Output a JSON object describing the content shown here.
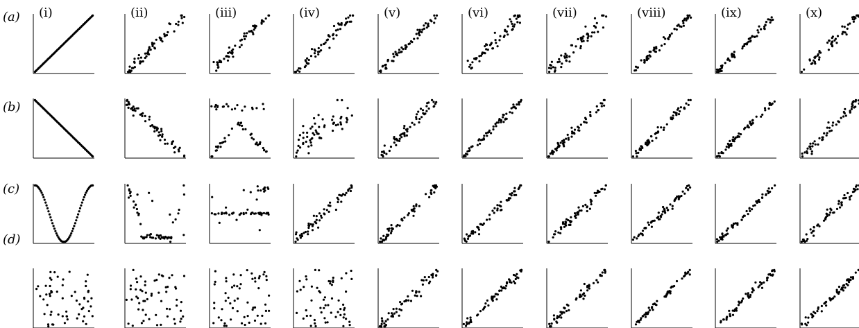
{
  "figure": {
    "row_labels": [
      "(a)",
      "(b)",
      "(c)",
      "(d)"
    ],
    "column_labels": [
      "(i)",
      "(ii)",
      "(iii)",
      "(iv)",
      "(v)",
      "(vi)",
      "(vii)",
      "(viii)",
      "(ix)",
      "(x)"
    ]
  },
  "colors": {
    "axis": "#000000",
    "points": "#000000",
    "background": "#ffffff"
  },
  "chart_data": {
    "type": "scatter",
    "title": "",
    "xlabel": "",
    "ylabel": "",
    "axes_ticks": false,
    "grid": false,
    "legend": "none",
    "xlim": [
      0,
      1
    ],
    "ylim": [
      0,
      1
    ],
    "points_per_panel": 60,
    "panel_description_note": "",
    "rows": [
      {
        "label": "(a)",
        "panels": [
          {
            "column": "(i)",
            "pattern": "identity",
            "noise": 0.0,
            "seed": 11
          },
          {
            "column": "(ii)",
            "pattern": "increasing",
            "noise": 0.05,
            "seed": 12
          },
          {
            "column": "(iii)",
            "pattern": "increasing",
            "noise": 0.05,
            "seed": 13
          },
          {
            "column": "(iv)",
            "pattern": "increasing",
            "noise": 0.05,
            "seed": 14
          },
          {
            "column": "(v)",
            "pattern": "increasing",
            "noise": 0.04,
            "seed": 15
          },
          {
            "column": "(vi)",
            "pattern": "increasing",
            "noise": 0.07,
            "seed": 16
          },
          {
            "column": "(vii)",
            "pattern": "increasing",
            "noise": 0.07,
            "seed": 17
          },
          {
            "column": "(viii)",
            "pattern": "increasing",
            "noise": 0.04,
            "seed": 18
          },
          {
            "column": "(ix)",
            "pattern": "increasing",
            "noise": 0.03,
            "seed": 19
          },
          {
            "column": "(x)",
            "pattern": "increasing",
            "noise": 0.05,
            "seed": 20
          }
        ]
      },
      {
        "label": "(b)",
        "panels": [
          {
            "column": "(i)",
            "pattern": "anti-identity",
            "noise": 0.0,
            "seed": 21
          },
          {
            "column": "(ii)",
            "pattern": "decreasing",
            "noise": 0.05,
            "seed": 22
          },
          {
            "column": "(iii)",
            "pattern": "x-shape",
            "noise": 0.04,
            "seed": 23
          },
          {
            "column": "(iv)",
            "pattern": "weak-increasing",
            "noise": 0.15,
            "seed": 24
          },
          {
            "column": "(v)",
            "pattern": "increasing",
            "noise": 0.06,
            "seed": 25
          },
          {
            "column": "(vi)",
            "pattern": "increasing",
            "noise": 0.04,
            "seed": 26
          },
          {
            "column": "(vii)",
            "pattern": "increasing",
            "noise": 0.04,
            "seed": 27
          },
          {
            "column": "(viii)",
            "pattern": "increasing",
            "noise": 0.04,
            "seed": 28
          },
          {
            "column": "(ix)",
            "pattern": "increasing",
            "noise": 0.03,
            "seed": 29
          },
          {
            "column": "(x)",
            "pattern": "increasing",
            "noise": 0.05,
            "seed": 30
          }
        ]
      },
      {
        "label": "(c)",
        "panels": [
          {
            "column": "(i)",
            "pattern": "cosine",
            "noise": 0.0,
            "seed": 31
          },
          {
            "column": "(ii)",
            "pattern": "u-shape",
            "noise": 0.06,
            "seed": 32
          },
          {
            "column": "(iii)",
            "pattern": "flat-band",
            "noise": 0.06,
            "seed": 33
          },
          {
            "column": "(iv)",
            "pattern": "increasing",
            "noise": 0.06,
            "seed": 34
          },
          {
            "column": "(v)",
            "pattern": "increasing",
            "noise": 0.05,
            "seed": 35
          },
          {
            "column": "(vi)",
            "pattern": "increasing",
            "noise": 0.04,
            "seed": 36
          },
          {
            "column": "(vii)",
            "pattern": "increasing",
            "noise": 0.05,
            "seed": 37
          },
          {
            "column": "(viii)",
            "pattern": "increasing",
            "noise": 0.04,
            "seed": 38
          },
          {
            "column": "(ix)",
            "pattern": "increasing",
            "noise": 0.03,
            "seed": 39
          },
          {
            "column": "(x)",
            "pattern": "increasing",
            "noise": 0.05,
            "seed": 40
          }
        ]
      },
      {
        "label": "(d)",
        "panels": [
          {
            "column": "(i)",
            "pattern": "random",
            "noise": 0.0,
            "seed": 41
          },
          {
            "column": "(ii)",
            "pattern": "random",
            "noise": 0.0,
            "seed": 42
          },
          {
            "column": "(iii)",
            "pattern": "random",
            "noise": 0.0,
            "seed": 43
          },
          {
            "column": "(iv)",
            "pattern": "random",
            "noise": 0.0,
            "seed": 44
          },
          {
            "column": "(v)",
            "pattern": "increasing",
            "noise": 0.07,
            "seed": 45
          },
          {
            "column": "(vi)",
            "pattern": "increasing",
            "noise": 0.04,
            "seed": 46
          },
          {
            "column": "(vii)",
            "pattern": "increasing",
            "noise": 0.04,
            "seed": 47
          },
          {
            "column": "(viii)",
            "pattern": "increasing",
            "noise": 0.03,
            "seed": 48
          },
          {
            "column": "(ix)",
            "pattern": "increasing",
            "noise": 0.04,
            "seed": 49
          },
          {
            "column": "(x)",
            "pattern": "increasing",
            "noise": 0.04,
            "seed": 50
          }
        ]
      }
    ]
  }
}
